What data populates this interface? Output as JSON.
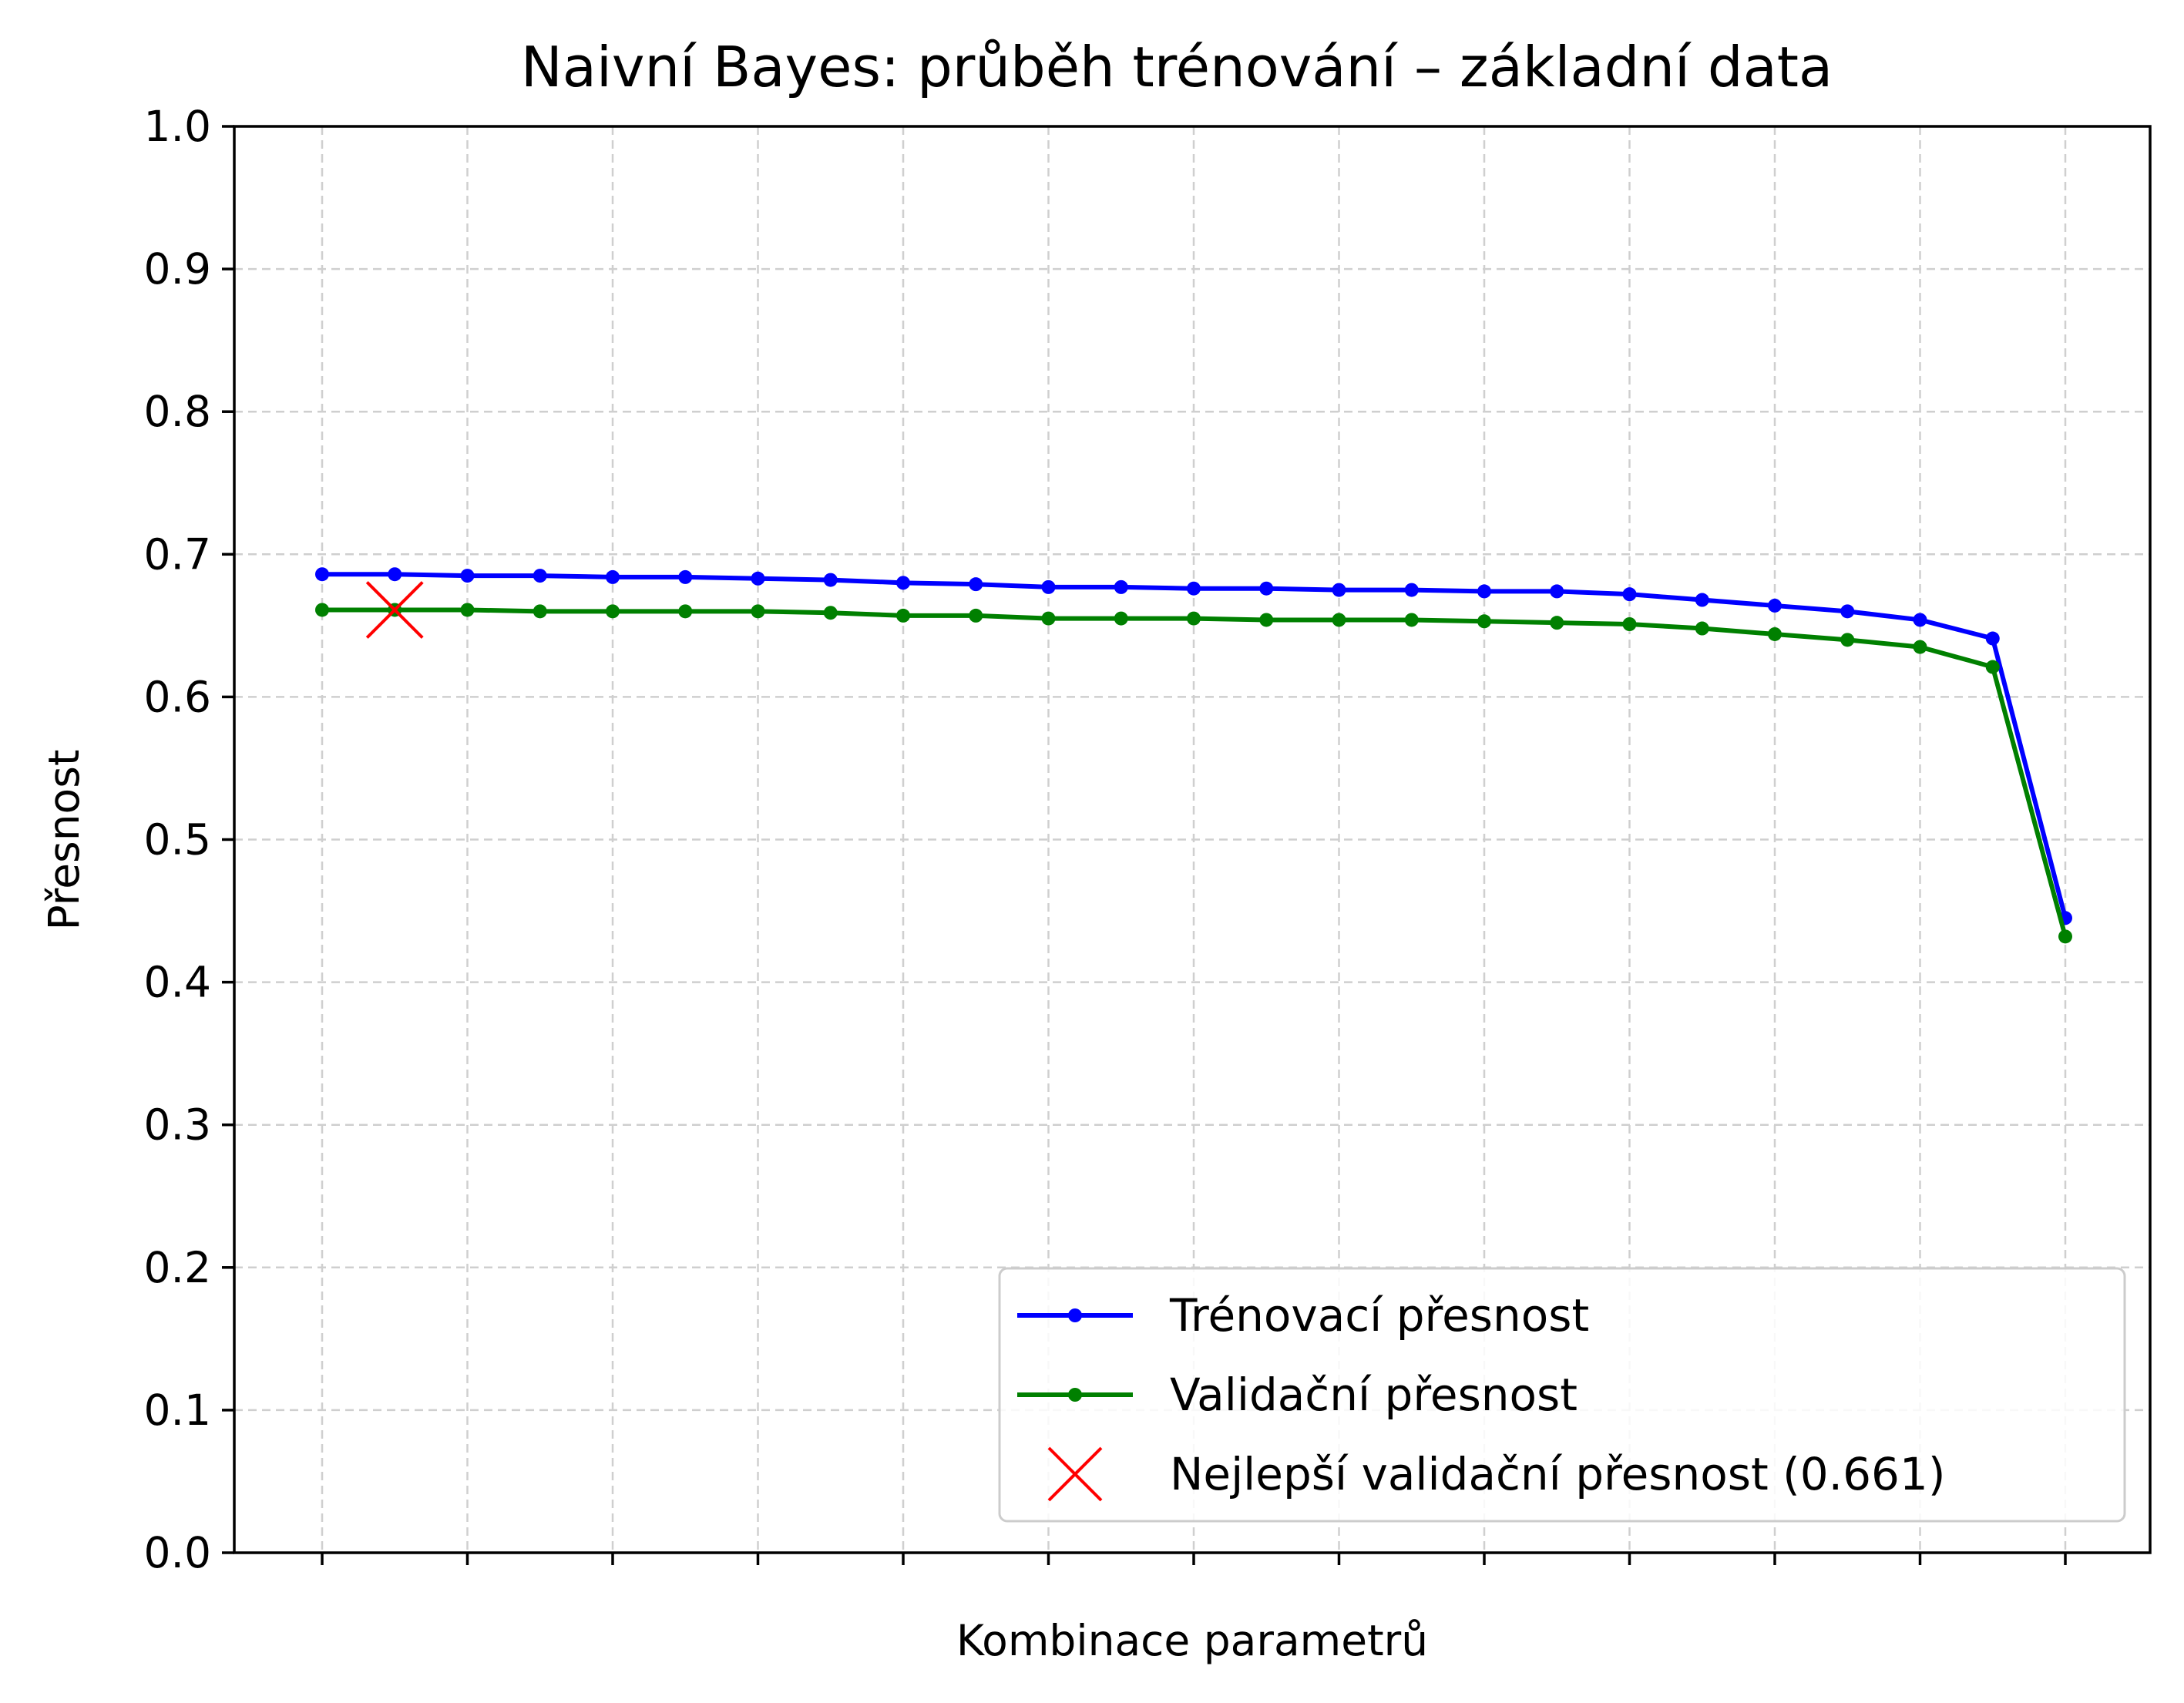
{
  "chart_data": {
    "type": "line",
    "title": "Naivní Bayes: průběh trénování – základní data",
    "xlabel": "Kombinace parametrů",
    "ylabel": "Přesnost",
    "ylim": [
      0,
      1
    ],
    "yticks": [
      "0.0",
      "0.1",
      "0.2",
      "0.3",
      "0.4",
      "0.5",
      "0.6",
      "0.7",
      "0.8",
      "0.9",
      "1.0"
    ],
    "x": [
      0,
      1,
      2,
      3,
      4,
      5,
      6,
      7,
      8,
      9,
      10,
      11,
      12,
      13,
      14,
      15,
      16,
      17,
      18,
      19,
      20,
      21,
      22,
      23,
      24
    ],
    "xtick_positions": [
      0,
      2,
      4,
      6,
      8,
      10,
      12,
      14,
      16,
      18,
      20,
      22,
      24
    ],
    "grid": true,
    "legend_position": "lower-right",
    "series": [
      {
        "name": "Trénovací přesnost",
        "color": "#0000ff",
        "marker": "dot",
        "values": [
          0.686,
          0.686,
          0.685,
          0.685,
          0.684,
          0.684,
          0.683,
          0.682,
          0.68,
          0.679,
          0.677,
          0.677,
          0.676,
          0.676,
          0.675,
          0.675,
          0.674,
          0.674,
          0.672,
          0.668,
          0.664,
          0.66,
          0.654,
          0.641,
          0.445
        ]
      },
      {
        "name": "Validační přesnost",
        "color": "#008000",
        "marker": "dot",
        "values": [
          0.661,
          0.661,
          0.661,
          0.66,
          0.66,
          0.66,
          0.66,
          0.659,
          0.657,
          0.657,
          0.655,
          0.655,
          0.655,
          0.654,
          0.654,
          0.654,
          0.653,
          0.652,
          0.651,
          0.648,
          0.644,
          0.64,
          0.635,
          0.621,
          0.432
        ]
      }
    ],
    "best_point": {
      "label": "Nejlepší validační přesnost (0.661)",
      "x": 1,
      "y": 0.661,
      "color": "#ff0000",
      "marker": "x"
    }
  }
}
